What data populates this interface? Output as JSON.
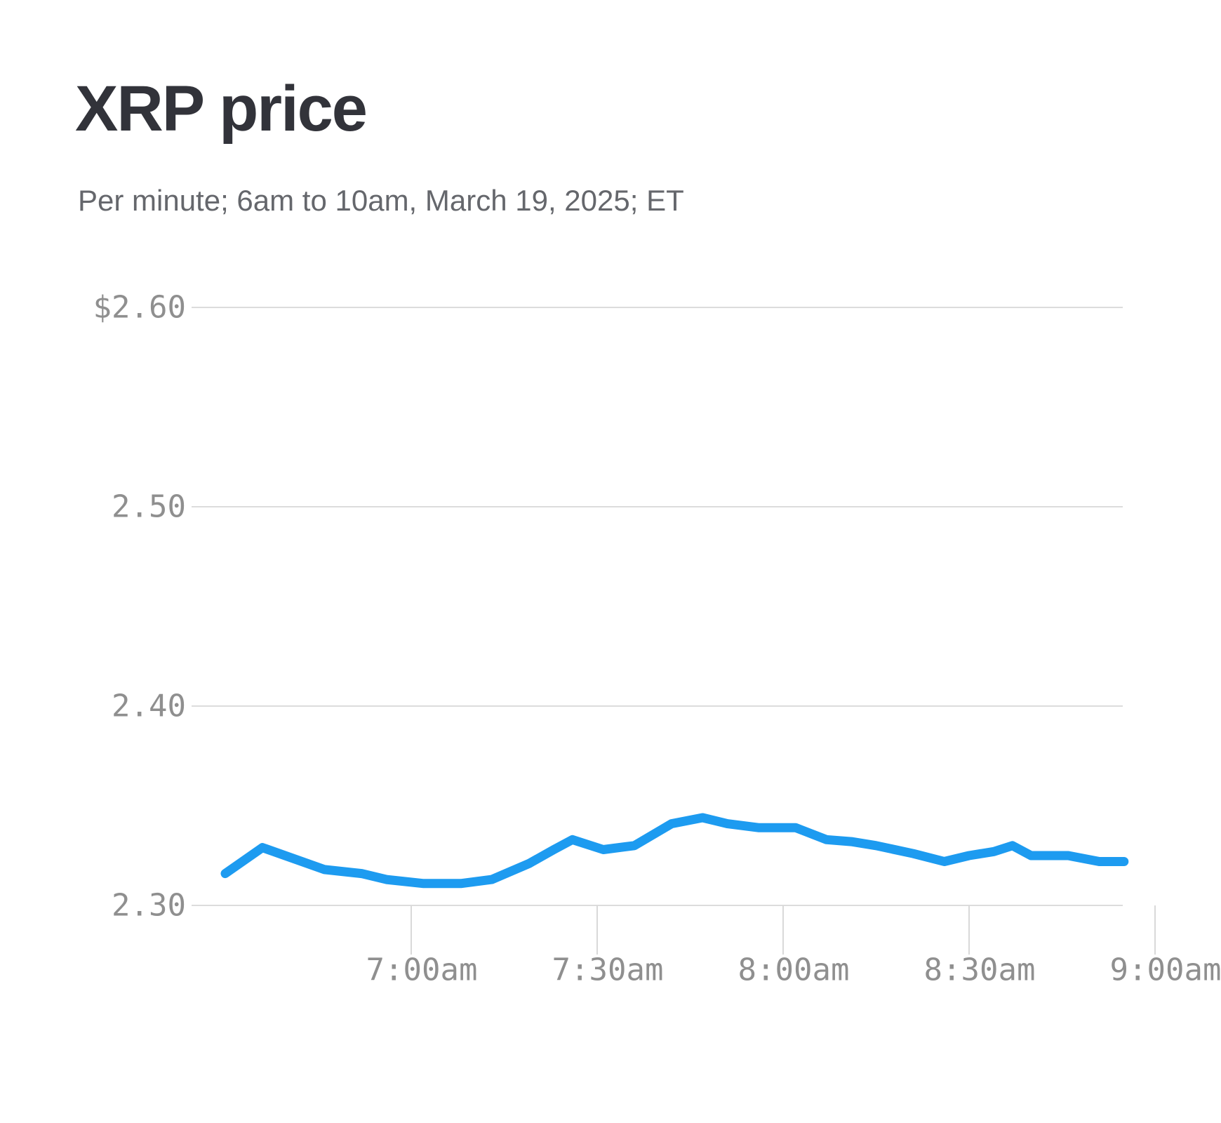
{
  "header": {
    "title": "XRP price",
    "subtitle": "Per minute; 6am to 10am, March 19, 2025; ET"
  },
  "colors": {
    "line": "#1d9bf0",
    "gridline": "#dcdcdc",
    "tick_mark": "#d9d9d9",
    "axis_label": "#8f8f8f",
    "title_text": "#32333a",
    "subtitle_text": "#65676c",
    "background": "#ffffff"
  },
  "chart_data": {
    "type": "line",
    "title": "XRP price",
    "subtitle": "Per minute; 6am to 10am, March 19, 2025; ET",
    "unit": "USD",
    "grid": "horizontal-only",
    "legend": "none",
    "ylim": [
      2.3,
      2.6
    ],
    "y_ticks": [
      {
        "label": "$2.60",
        "value": 2.6
      },
      {
        "label": "2.50",
        "value": 2.5
      },
      {
        "label": "2.40",
        "value": 2.4
      },
      {
        "label": "2.30",
        "value": 2.3
      }
    ],
    "x_ticks": [
      {
        "label": "7:00am"
      },
      {
        "label": "7:30am"
      },
      {
        "label": "8:00am"
      },
      {
        "label": "8:30am"
      },
      {
        "label": "9:00am"
      }
    ],
    "visible_time_range": [
      "6:30am",
      "8:55am"
    ],
    "series": [
      {
        "name": "XRP price",
        "color": "#1d9bf0",
        "points": [
          {
            "time": "6:30am",
            "price": 2.316
          },
          {
            "time": "6:36am",
            "price": 2.329
          },
          {
            "time": "6:46am",
            "price": 2.318
          },
          {
            "time": "6:52am",
            "price": 2.316
          },
          {
            "time": "6:56am",
            "price": 2.313
          },
          {
            "time": "7:02am",
            "price": 2.311
          },
          {
            "time": "7:08am",
            "price": 2.311
          },
          {
            "time": "7:13am",
            "price": 2.313
          },
          {
            "time": "7:19am",
            "price": 2.321
          },
          {
            "time": "7:23am",
            "price": 2.328
          },
          {
            "time": "7:26am",
            "price": 2.333
          },
          {
            "time": "7:31am",
            "price": 2.328
          },
          {
            "time": "7:36am",
            "price": 2.33
          },
          {
            "time": "7:42am",
            "price": 2.341
          },
          {
            "time": "7:47am",
            "price": 2.344
          },
          {
            "time": "7:51am",
            "price": 2.341
          },
          {
            "time": "7:56am",
            "price": 2.339
          },
          {
            "time": "8:02am",
            "price": 2.339
          },
          {
            "time": "8:07am",
            "price": 2.333
          },
          {
            "time": "8:11am",
            "price": 2.332
          },
          {
            "time": "8:15am",
            "price": 2.33
          },
          {
            "time": "8:21am",
            "price": 2.326
          },
          {
            "time": "8:26am",
            "price": 2.322
          },
          {
            "time": "8:30am",
            "price": 2.325
          },
          {
            "time": "8:34am",
            "price": 2.327
          },
          {
            "time": "8:37am",
            "price": 2.33
          },
          {
            "time": "8:40am",
            "price": 2.325
          },
          {
            "time": "8:46am",
            "price": 2.325
          },
          {
            "time": "8:51am",
            "price": 2.322
          },
          {
            "time": "8:55am",
            "price": 2.322
          }
        ]
      }
    ]
  }
}
